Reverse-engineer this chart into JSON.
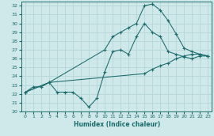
{
  "title": "",
  "xlabel": "Humidex (Indice chaleur)",
  "ylabel": "",
  "bg_color": "#cfe8ea",
  "grid_color": "#b8d8da",
  "line_color": "#1a6b6b",
  "xlim": [
    -0.5,
    23.5
  ],
  "ylim": [
    20,
    32.5
  ],
  "xticks": [
    0,
    1,
    2,
    3,
    4,
    5,
    6,
    7,
    8,
    9,
    10,
    11,
    12,
    13,
    14,
    15,
    16,
    17,
    18,
    19,
    20,
    21,
    22,
    23
  ],
  "yticks": [
    20,
    21,
    22,
    23,
    24,
    25,
    26,
    27,
    28,
    29,
    30,
    31,
    32
  ],
  "line1_x": [
    0,
    1,
    2,
    3,
    4,
    5,
    6,
    7,
    8,
    9,
    10,
    11,
    12,
    13,
    14,
    15,
    16,
    17,
    18,
    19,
    20,
    21,
    22,
    23
  ],
  "line1_y": [
    22.2,
    22.8,
    22.8,
    23.3,
    22.2,
    22.2,
    22.2,
    21.5,
    20.5,
    21.5,
    24.5,
    26.8,
    27.0,
    26.5,
    28.5,
    30.0,
    29.0,
    28.5,
    26.8,
    26.5,
    26.2,
    26.0,
    26.3,
    26.3
  ],
  "line2_x": [
    0,
    3,
    15,
    16,
    17,
    18,
    19,
    20,
    21,
    22,
    23
  ],
  "line2_y": [
    22.2,
    23.3,
    24.3,
    24.8,
    25.2,
    25.5,
    26.0,
    26.3,
    26.5,
    26.5,
    26.3
  ],
  "line3_x": [
    0,
    3,
    10,
    11,
    12,
    13,
    14,
    15,
    16,
    17,
    18,
    19,
    20,
    21,
    22,
    23
  ],
  "line3_y": [
    22.2,
    23.3,
    27.0,
    28.5,
    29.0,
    29.5,
    30.0,
    32.0,
    32.2,
    31.5,
    30.3,
    28.8,
    27.2,
    26.8,
    26.5,
    26.3
  ]
}
